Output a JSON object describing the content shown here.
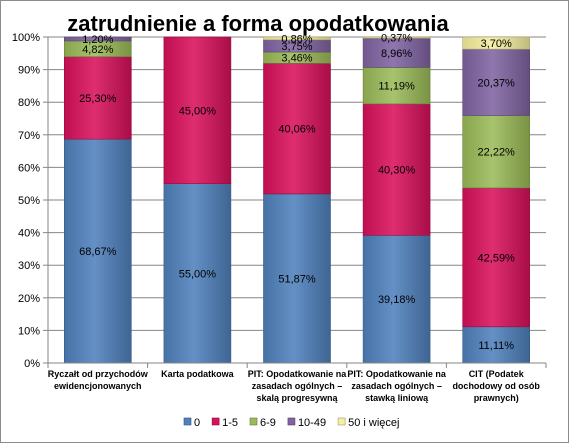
{
  "chart_data": {
    "type": "bar",
    "stacked": true,
    "percent": true,
    "title": "zatrudnienie a forma opodatkowania",
    "xlabel": "",
    "ylabel": "",
    "ylim": [
      0,
      100
    ],
    "y_ticks": [
      "0%",
      "10%",
      "20%",
      "30%",
      "40%",
      "50%",
      "60%",
      "70%",
      "80%",
      "90%",
      "100%"
    ],
    "grid": true,
    "legend_position": "bottom",
    "categories": [
      [
        "Ryczałt od przychodów",
        "ewidencjonowanych"
      ],
      [
        "Karta podatkowa"
      ],
      [
        "PIT: Opodatkowanie na",
        "zasadach ogólnych –",
        "skalą progresywną"
      ],
      [
        "PIT: Opodatkowanie na",
        "zasadach ogólnych –",
        "stawką liniową"
      ],
      [
        "CIT (Podatek",
        "dochodowy od osób",
        "prawnych)"
      ]
    ],
    "series": [
      {
        "name": "0",
        "color": "#4f81bd",
        "values": [
          68.67,
          55.0,
          51.87,
          39.18,
          11.11
        ],
        "labels": [
          "68,67%",
          "55,00%",
          "51,87%",
          "39,18%",
          "11,11%"
        ]
      },
      {
        "name": "1-5",
        "color": "#d9115c",
        "values": [
          25.3,
          45.0,
          40.06,
          40.3,
          42.59
        ],
        "labels": [
          "25,30%",
          "45,00%",
          "40,06%",
          "40,30%",
          "42,59%"
        ]
      },
      {
        "name": "6-9",
        "color": "#9bbb59",
        "values": [
          4.82,
          0,
          3.46,
          11.19,
          22.22
        ],
        "labels": [
          "4,82%",
          "",
          "3,46%",
          "11,19%",
          "22,22%"
        ]
      },
      {
        "name": "10-49",
        "color": "#8064a2",
        "values": [
          1.2,
          0,
          3.75,
          8.96,
          20.37
        ],
        "labels": [
          "1,20%",
          "",
          "3,75%",
          "8,96%",
          "20,37%"
        ]
      },
      {
        "name": "50 i więcej",
        "color": "#f5f0a0",
        "values": [
          0,
          0,
          0.86,
          0.37,
          3.7
        ],
        "labels": [
          "",
          "",
          "0,86%",
          "0,37%",
          "3,70%"
        ]
      }
    ]
  }
}
